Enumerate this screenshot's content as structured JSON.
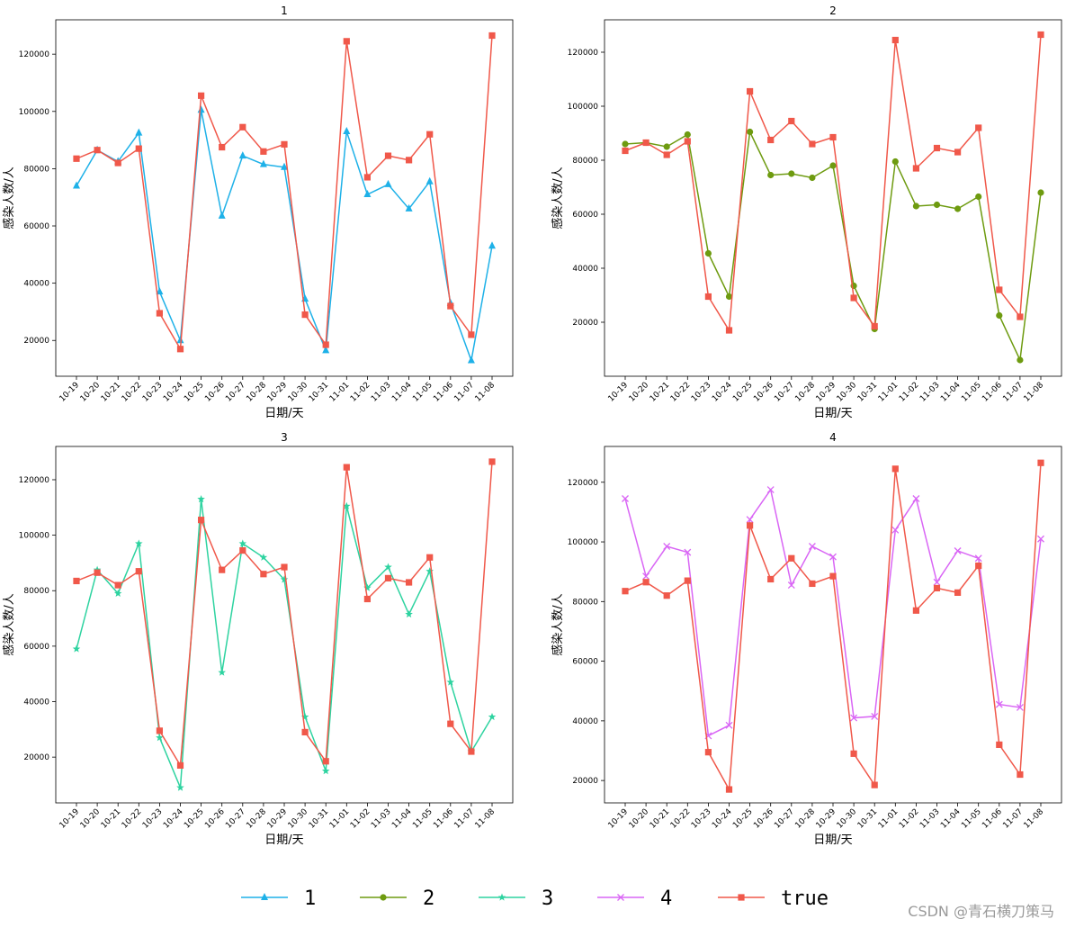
{
  "watermark": "CSDN @青石横刀策马",
  "legend": [
    {
      "label": "1",
      "color": "#1EB1E8",
      "marker": "triangle"
    },
    {
      "label": "2",
      "color": "#6E9B10",
      "marker": "circle"
    },
    {
      "label": "3",
      "color": "#2ED3A0",
      "marker": "star"
    },
    {
      "label": "4",
      "color": "#D966F5",
      "marker": "x"
    },
    {
      "label": "true",
      "color": "#F0584A",
      "marker": "square"
    }
  ],
  "chart_data": [
    {
      "type": "line",
      "title": "1",
      "xlabel": "日期/天",
      "ylabel": "感染人数/人",
      "categories": [
        "10-19",
        "10-20",
        "10-21",
        "10-22",
        "10-23",
        "10-24",
        "10-25",
        "10-26",
        "10-27",
        "10-28",
        "10-29",
        "10-30",
        "10-31",
        "11-01",
        "11-02",
        "11-03",
        "11-04",
        "11-05",
        "11-06",
        "11-07",
        "11-08"
      ],
      "yticks": [
        20000,
        40000,
        60000,
        80000,
        100000,
        120000
      ],
      "ylim": [
        7500,
        132000
      ],
      "series": [
        {
          "name": "1",
          "color": "#1EB1E8",
          "marker": "triangle",
          "values": [
            74000,
            86500,
            82500,
            92500,
            37000,
            20000,
            100500,
            63500,
            84500,
            81500,
            80500,
            34500,
            16500,
            93000,
            71000,
            74500,
            66000,
            75500,
            33000,
            13000,
            53000
          ]
        },
        {
          "name": "true",
          "color": "#F0584A",
          "marker": "square",
          "values": [
            83500,
            86500,
            82000,
            87000,
            29500,
            17000,
            105500,
            87500,
            94500,
            86000,
            88500,
            29000,
            18500,
            124500,
            77000,
            84500,
            83000,
            92000,
            32000,
            22000,
            126500
          ]
        }
      ]
    },
    {
      "type": "line",
      "title": "2",
      "xlabel": "日期/天",
      "ylabel": "感染人数/人",
      "categories": [
        "10-19",
        "10-20",
        "10-21",
        "10-22",
        "10-23",
        "10-24",
        "10-25",
        "10-26",
        "10-27",
        "10-28",
        "10-29",
        "10-30",
        "10-31",
        "11-01",
        "11-02",
        "11-03",
        "11-04",
        "11-05",
        "11-06",
        "11-07",
        "11-08"
      ],
      "yticks": [
        20000,
        40000,
        60000,
        80000,
        100000,
        120000
      ],
      "ylim": [
        0,
        132000
      ],
      "series": [
        {
          "name": "2",
          "color": "#6E9B10",
          "marker": "circle",
          "values": [
            86000,
            86500,
            85000,
            89500,
            45500,
            29500,
            90500,
            74500,
            75000,
            73500,
            78000,
            33500,
            17500,
            79500,
            63000,
            63500,
            62000,
            66500,
            22500,
            6000,
            68000
          ]
        },
        {
          "name": "true",
          "color": "#F0584A",
          "marker": "square",
          "values": [
            83500,
            86500,
            82000,
            87000,
            29500,
            17000,
            105500,
            87500,
            94500,
            86000,
            88500,
            29000,
            18500,
            124500,
            77000,
            84500,
            83000,
            92000,
            32000,
            22000,
            126500
          ]
        }
      ]
    },
    {
      "type": "line",
      "title": "3",
      "xlabel": "日期/天",
      "ylabel": "感染人数/人",
      "categories": [
        "10-19",
        "10-20",
        "10-21",
        "10-22",
        "10-23",
        "10-24",
        "10-25",
        "10-26",
        "10-27",
        "10-28",
        "10-29",
        "10-30",
        "10-31",
        "11-01",
        "11-02",
        "11-03",
        "11-04",
        "11-05",
        "11-06",
        "11-07",
        "11-08"
      ],
      "yticks": [
        20000,
        40000,
        60000,
        80000,
        100000,
        120000
      ],
      "ylim": [
        3500,
        132000
      ],
      "series": [
        {
          "name": "3",
          "color": "#2ED3A0",
          "marker": "star",
          "values": [
            59000,
            87500,
            79000,
            97000,
            27000,
            9000,
            113000,
            50500,
            97000,
            92000,
            84000,
            34500,
            15000,
            110500,
            81000,
            88500,
            71500,
            87000,
            47000,
            22000,
            34500
          ]
        },
        {
          "name": "true",
          "color": "#F0584A",
          "marker": "square",
          "values": [
            83500,
            86500,
            82000,
            87000,
            29500,
            17000,
            105500,
            87500,
            94500,
            86000,
            88500,
            29000,
            18500,
            124500,
            77000,
            84500,
            83000,
            92000,
            32000,
            22000,
            126500
          ]
        }
      ]
    },
    {
      "type": "line",
      "title": "4",
      "xlabel": "日期/天",
      "ylabel": "感染人数/人",
      "categories": [
        "10-19",
        "10-20",
        "10-21",
        "10-22",
        "10-23",
        "10-24",
        "10-25",
        "10-26",
        "10-27",
        "10-28",
        "10-29",
        "10-30",
        "10-31",
        "11-01",
        "11-02",
        "11-03",
        "11-04",
        "11-05",
        "11-06",
        "11-07",
        "11-08"
      ],
      "yticks": [
        20000,
        40000,
        60000,
        80000,
        100000,
        120000
      ],
      "ylim": [
        12500,
        132000
      ],
      "series": [
        {
          "name": "4",
          "color": "#D966F5",
          "marker": "x",
          "values": [
            114500,
            88500,
            98500,
            96500,
            35000,
            38500,
            107500,
            117500,
            85500,
            98500,
            95000,
            41000,
            41500,
            104000,
            114500,
            86500,
            97000,
            94500,
            45500,
            44500,
            101000
          ]
        },
        {
          "name": "true",
          "color": "#F0584A",
          "marker": "square",
          "values": [
            83500,
            86500,
            82000,
            87000,
            29500,
            17000,
            105500,
            87500,
            94500,
            86000,
            88500,
            29000,
            18500,
            124500,
            77000,
            84500,
            83000,
            92000,
            32000,
            22000,
            126500
          ]
        }
      ]
    }
  ]
}
